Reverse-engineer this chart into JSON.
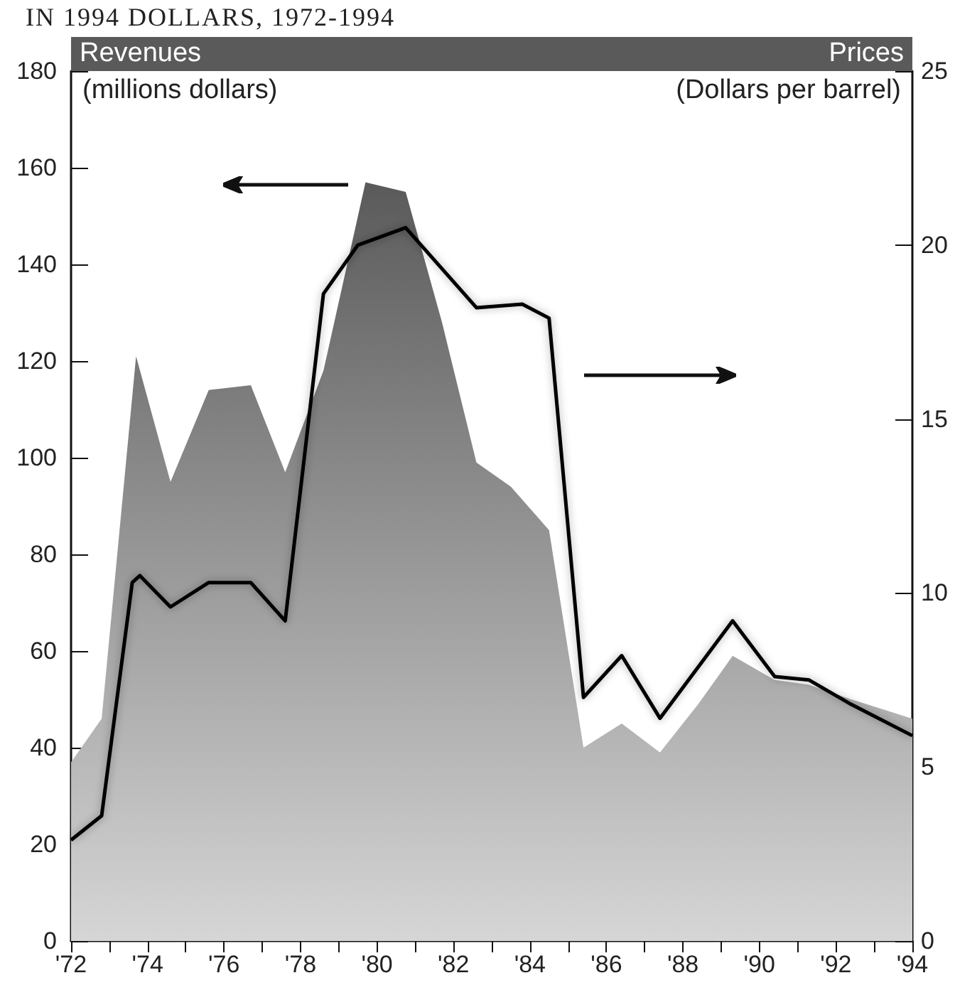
{
  "chart_data": {
    "type": "area",
    "title": "IN 1994 DOLLARS, 1972-1994",
    "ylabel": "Revenues",
    "y2label": "Prices",
    "annotations": [
      "(millions dollars)",
      "(Dollars per barrel)"
    ],
    "series": [
      {
        "color": "#5a5a5a",
        "x": [
          1972,
          1972.8,
          1973.7,
          1974.6,
          1975.6,
          1976.7,
          1977.6,
          1978.6,
          1979.7,
          1980.75,
          1981.7,
          1982.6,
          1983.5,
          1984.5,
          1985.4,
          1986.4,
          1987.4,
          1988.4,
          1989.3,
          1990.4,
          1991.3,
          1992.4,
          1993.2,
          1994
        ],
        "values": [
          37,
          46,
          121,
          95,
          114,
          115,
          97,
          118,
          157,
          155,
          128,
          99,
          94,
          85,
          40,
          45,
          39,
          49,
          59,
          54,
          53,
          50,
          48,
          46
        ]
      },
      {
        "type": "line",
        "axis": "y2",
        "color": "#000000",
        "x": [
          1972,
          1972.8,
          1973.6,
          1973.8,
          1974.6,
          1975.6,
          1976.7,
          1977.6,
          1978.6,
          1979.5,
          1980.75,
          1982.6,
          1983.8,
          1984.5,
          1985.4,
          1986.4,
          1987.4,
          1989.3,
          1990.4,
          1991.3,
          1992.4,
          1994
        ],
        "values": [
          2.9,
          3.6,
          10.3,
          10.5,
          9.6,
          10.3,
          10.3,
          9.2,
          18.6,
          20.0,
          20.5,
          18.2,
          18.3,
          17.9,
          7.0,
          8.2,
          6.4,
          9.2,
          7.6,
          7.5,
          6.8,
          5.9
        ]
      }
    ],
    "xlim": [
      1972,
      1994
    ],
    "xticks": [
      {
        "value": 1972,
        "label": "'72"
      },
      {
        "value": 1973,
        "label": null
      },
      {
        "value": 1974,
        "label": "'74"
      },
      {
        "value": 1975,
        "label": null
      },
      {
        "value": 1976,
        "label": "'76"
      },
      {
        "value": 1977,
        "label": null
      },
      {
        "value": 1978,
        "label": "'78"
      },
      {
        "value": 1979,
        "label": null
      },
      {
        "value": 1980,
        "label": "'80"
      },
      {
        "value": 1981,
        "label": null
      },
      {
        "value": 1982,
        "label": "'82"
      },
      {
        "value": 1983,
        "label": null
      },
      {
        "value": 1984,
        "label": "'84"
      },
      {
        "value": 1985,
        "label": null
      },
      {
        "value": 1986,
        "label": "'86"
      },
      {
        "value": 1987,
        "label": null
      },
      {
        "value": 1988,
        "label": "'88"
      },
      {
        "value": 1989,
        "label": null
      },
      {
        "value": 1990,
        "label": "'90"
      },
      {
        "value": 1991,
        "label": null
      },
      {
        "value": 1992,
        "label": "'92"
      },
      {
        "value": 1993,
        "label": null
      },
      {
        "value": 1994,
        "label": "'94"
      }
    ],
    "ylim": [
      0,
      180
    ],
    "yticks": [
      0,
      20,
      40,
      60,
      80,
      100,
      120,
      140,
      160,
      180
    ],
    "y2lim": [
      0,
      25
    ],
    "y2ticks": [
      0,
      5,
      10,
      15,
      20,
      25
    ],
    "grid": false,
    "marker": "none",
    "line_style": "solid"
  }
}
